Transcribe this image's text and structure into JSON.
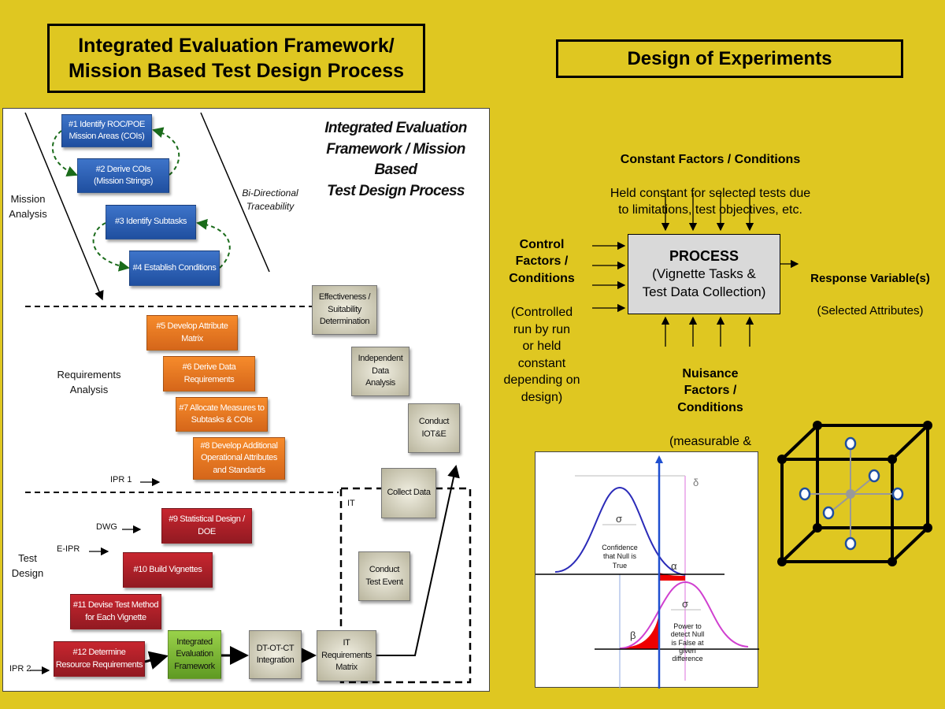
{
  "left_title": "Integrated Evaluation Framework/\nMission Based Test Design Process",
  "right_title": "Design of Experiments",
  "panel": {
    "heading": "Integrated Evaluation\nFramework / Mission Based\nTest Design Process",
    "traceability": "Bi-Directional\nTraceability",
    "phases": {
      "mission": "Mission\nAnalysis",
      "requirements": "Requirements\nAnalysis",
      "test": "Test\nDesign"
    },
    "milestones": {
      "ipr1": "IPR 1",
      "dwg": "DWG",
      "eipr": "E-IPR",
      "ipr2": "IPR 2",
      "it": "IT"
    },
    "steps": [
      "#1 Identify ROC/POE\nMission Areas (COIs)",
      "#2 Derive COIs\n(Mission Strings)",
      "#3 Identify Subtasks",
      "#4 Establish Conditions",
      "#5 Develop Attribute\nMatrix",
      "#6 Derive Data\nRequirements",
      "#7 Allocate Measures to\nSubtasks & COIs",
      "#8 Develop Additional\nOperational Attributes\nand Standards",
      "#9 Statistical Design /\nDOE",
      "#10 Build Vignettes",
      "#11 Devise Test Method\nfor Each Vignette",
      "#12 Determine\nResource Requirements"
    ],
    "flow": {
      "ief": "Integrated\nEvaluation\nFramework",
      "dtotct": "DT-OT-CT\nIntegration",
      "itreq": "IT\nRequirements\nMatrix",
      "conduct_test": "Conduct\nTest Event",
      "collect": "Collect Data",
      "iote": "Conduct\nIOT&E",
      "ida": "Independent\nData\nAnalysis",
      "eff": "Effectiveness /\nSuitability\nDetermination"
    }
  },
  "doe": {
    "constant": {
      "title": "Constant Factors / Conditions",
      "desc": "Held constant for selected tests due\nto limitations, test objectives, etc."
    },
    "control": {
      "title": "Control\nFactors /\nConditions",
      "desc": "(Controlled\nrun by run\nor held\nconstant\ndepending on\ndesign)"
    },
    "process": {
      "title": "PROCESS",
      "desc": "(Vignette Tasks &\nTest Data Collection)"
    },
    "response": {
      "title": "Response Variable(s)",
      "desc": "(Selected Attributes)"
    },
    "nuisance": {
      "title": "Nuisance\nFactors /\nConditions",
      "desc": "(measurable &\nnot measurable)"
    }
  },
  "power_graph": {
    "delta": "δ",
    "sigma": "σ",
    "alpha": "α",
    "beta": "β",
    "null_label": "Confidence\nthat Null is\nTrue",
    "power_label": "Power to\ndetect Null\nis False at\ngiven\ndifference"
  },
  "colors": {
    "background": "#dfc721",
    "mission": "#2a5db0",
    "requirements": "#ee7a22",
    "test": "#b0202a",
    "framework": "#7cb83a"
  }
}
